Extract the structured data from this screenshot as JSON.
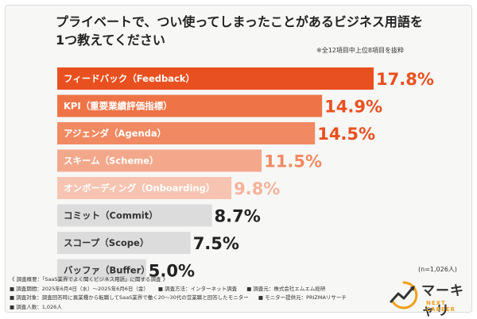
{
  "title_line1": "プライベートで、つい使ってしまったことがあるビジネス用語を",
  "title_line2": "1つ教えてください",
  "note": "※全12項目中上位8項目を抜粋",
  "sample": "(n=1,026人)",
  "footer": {
    "survey_name": "《 調査概要：「SaaS業界でよく聞くビジネス用語」に関する調査 》",
    "period": "■ 調査期間：2025年6月4日（水）〜2025年6月6日（金）",
    "method": "■ 調査方法：インターネット調査",
    "company": "■ 調査元：株式会社エムエム総研",
    "target": "■ 調査対象：調査回答時に異業種から転職してSaaS業界で働く20〜30代の営業職と回答したモニター",
    "provider": "■ モニター提供元：PRIZMAリサーチ",
    "count": "■ 調査人数：1,026人"
  },
  "logo": {
    "main": "マーキャリ",
    "sub": "NEXT CAREER"
  },
  "colors": {
    "accent": "#e9501f",
    "gray": "#dcdcdc"
  },
  "chart_data": {
    "type": "bar",
    "orientation": "horizontal",
    "title": "プライベートで、つい使ってしまったことがあるビジネス用語を1つ教えてください",
    "unit": "%",
    "xlim": [
      0,
      17.8
    ],
    "categories": [
      "フィードバック（Feedback）",
      "KPI（重要業績評価指標）",
      "アジェンダ（Agenda）",
      "スキーム（Scheme）",
      "オンボーディング（Onboarding）",
      "コミット（Commit）",
      "スコープ（Scope）",
      "バッファ（Buffer）"
    ],
    "values": [
      17.8,
      14.9,
      14.5,
      11.5,
      9.8,
      8.7,
      7.5,
      5.0
    ],
    "value_labels": [
      "17.8%",
      "14.9%",
      "14.5%",
      "11.5%",
      "9.8%",
      "8.7%",
      "7.5%",
      "5.0%"
    ],
    "bar_colors": [
      "#e9501f",
      "#ee7447",
      "#f18a62",
      "#f3a88c",
      "#f7c4b2",
      "#dcdcdc",
      "#dcdcdc",
      "#dcdcdc"
    ],
    "label_colors": [
      "#e9501f",
      "#e9501f",
      "#e9501f",
      "#f18a62",
      "#f5b39b",
      "#222222",
      "#222222",
      "#222222"
    ]
  }
}
